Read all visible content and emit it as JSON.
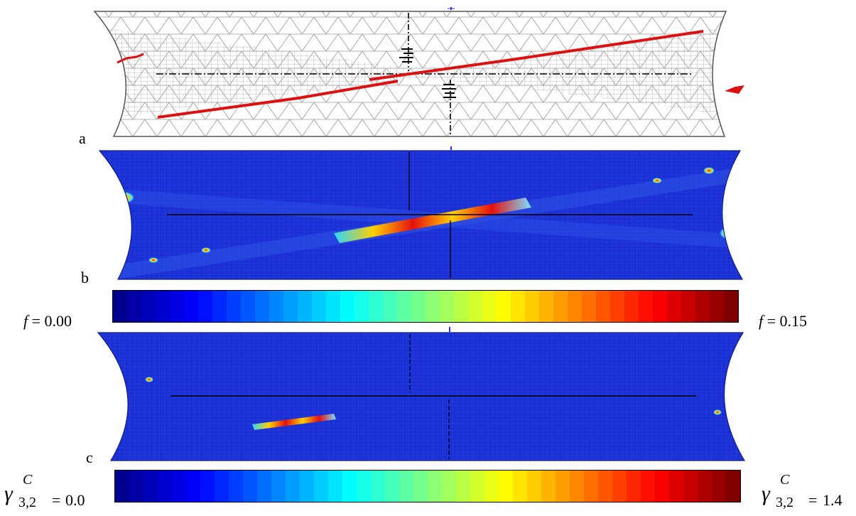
{
  "panels": [
    {
      "label": "a",
      "kind": "mesh"
    },
    {
      "label": "b",
      "kind": "contour",
      "field": "f"
    },
    {
      "label": "c",
      "kind": "contour",
      "field": "gamma"
    }
  ],
  "colorbar_f": {
    "symbol": "f",
    "eq": "=",
    "min_value": "0.00",
    "max_value": "0.15"
  },
  "colorbar_gamma": {
    "symbol": "γ",
    "superscript": "C",
    "subscript": "3,2",
    "eq": "=",
    "min_value": "0.0",
    "max_value": "1.4"
  },
  "colors": {
    "mesh_line": "#9a9a9a",
    "mesh_bg": "#ffffff",
    "band_red": "#dd1111",
    "contour_base": "#1a2fd6",
    "axis_line": "#000000",
    "top_tick": "#2233ee"
  },
  "colormap": [
    "#00008f",
    "#0000ff",
    "#0080ff",
    "#00ffff",
    "#80ff80",
    "#ffff00",
    "#ff8000",
    "#ff0000",
    "#800000"
  ]
}
